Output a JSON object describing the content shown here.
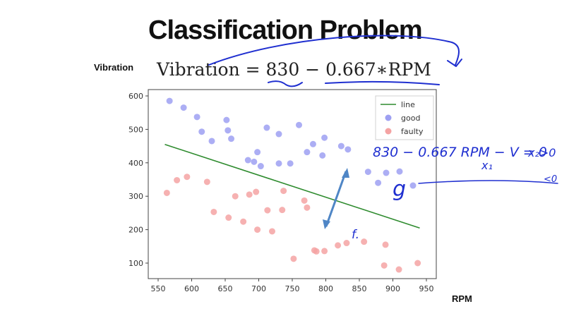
{
  "slide": {
    "title": "Classification Problem",
    "equation_label": "Vibration",
    "equation": "Vibration = 830 − 0.667∗RPM",
    "x_axis_outer_label": "RPM"
  },
  "chart_data": {
    "type": "scatter",
    "title": "",
    "xlabel": "RPM",
    "ylabel": "Vibration",
    "xlim": [
      550,
      950
    ],
    "ylim": [
      70,
      605
    ],
    "xticks": [
      550,
      600,
      650,
      700,
      750,
      800,
      850,
      900,
      950
    ],
    "yticks": [
      100,
      200,
      300,
      400,
      500,
      600
    ],
    "legend_position": "top-right",
    "colors": {
      "line": "#2e8b2e",
      "good": "#9ea0f2",
      "faulty": "#f4a3a3"
    },
    "line": {
      "name": "line",
      "x": [
        560,
        940
      ],
      "y": [
        455,
        205
      ]
    },
    "series": [
      {
        "name": "good",
        "points": [
          [
            567,
            585
          ],
          [
            588,
            565
          ],
          [
            608,
            537
          ],
          [
            615,
            493
          ],
          [
            630,
            465
          ],
          [
            652,
            528
          ],
          [
            654,
            497
          ],
          [
            659,
            472
          ],
          [
            684,
            408
          ],
          [
            693,
            403
          ],
          [
            698,
            432
          ],
          [
            703,
            390
          ],
          [
            712,
            505
          ],
          [
            730,
            486
          ],
          [
            730,
            398
          ],
          [
            747,
            398
          ],
          [
            760,
            513
          ],
          [
            772,
            432
          ],
          [
            781,
            456
          ],
          [
            795,
            422
          ],
          [
            798,
            475
          ],
          [
            823,
            450
          ],
          [
            833,
            440
          ],
          [
            863,
            373
          ],
          [
            878,
            340
          ],
          [
            890,
            370
          ],
          [
            910,
            374
          ],
          [
            930,
            332
          ]
        ]
      },
      {
        "name": "faulty",
        "points": [
          [
            563,
            310
          ],
          [
            578,
            348
          ],
          [
            593,
            358
          ],
          [
            623,
            343
          ],
          [
            633,
            253
          ],
          [
            655,
            236
          ],
          [
            665,
            300
          ],
          [
            677,
            224
          ],
          [
            686,
            305
          ],
          [
            696,
            313
          ],
          [
            698,
            200
          ],
          [
            713,
            258
          ],
          [
            720,
            195
          ],
          [
            735,
            259
          ],
          [
            737,
            316
          ],
          [
            752,
            113
          ],
          [
            768,
            287
          ],
          [
            772,
            266
          ],
          [
            783,
            138
          ],
          [
            786,
            135
          ],
          [
            798,
            136
          ],
          [
            818,
            153
          ],
          [
            831,
            160
          ],
          [
            857,
            164
          ],
          [
            887,
            93
          ],
          [
            889,
            155
          ],
          [
            909,
            81
          ],
          [
            937,
            100
          ]
        ]
      }
    ]
  },
  "annotations": {
    "handwritten_equation": "830 − 0.667 RPM − V = 0",
    "x1_label": "x₁",
    "x2_label": "x₂>0",
    "g_label": "g",
    "f_label": "f.",
    "lt0_label": "<0"
  }
}
